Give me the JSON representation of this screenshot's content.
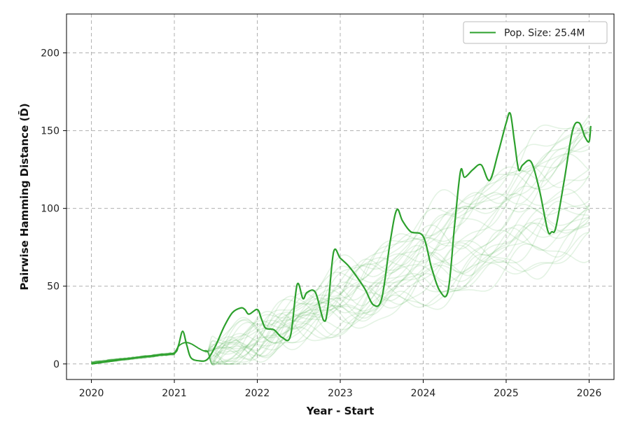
{
  "chart_data": {
    "type": "line",
    "title": "",
    "xlabel": "Year - Start",
    "ylabel": "Pairwise Hamming Distance (D̄)",
    "xlim": [
      2019.7,
      2026.3
    ],
    "ylim": [
      -10,
      225
    ],
    "x_ticks": [
      2020,
      2021,
      2022,
      2023,
      2024,
      2025,
      2026
    ],
    "x_tick_labels": [
      "2020",
      "2021",
      "2022",
      "2023",
      "2024",
      "2025",
      "2026"
    ],
    "y_ticks": [
      0,
      50,
      100,
      150,
      200
    ],
    "y_tick_labels": [
      "0",
      "50",
      "100",
      "150",
      "200"
    ],
    "grid": true,
    "legend": {
      "position": "top-right",
      "entries": [
        "Pop. Size: 25.4M"
      ]
    },
    "colors": {
      "main": "#2ca02c",
      "background_runs": "#2ca02c"
    },
    "series": [
      {
        "name": "Pop. Size: 25.4M",
        "x": [
          2020.0,
          2020.2,
          2020.4,
          2020.6,
          2020.8,
          2021.0,
          2021.05,
          2021.1,
          2021.15,
          2021.2,
          2021.3,
          2021.4,
          2021.5,
          2021.6,
          2021.7,
          2021.8,
          2021.85,
          2021.9,
          2022.0,
          2022.05,
          2022.1,
          2022.2,
          2022.3,
          2022.4,
          2022.48,
          2022.55,
          2022.6,
          2022.7,
          2022.8,
          2022.85,
          2022.92,
          2023.0,
          2023.1,
          2023.2,
          2023.3,
          2023.4,
          2023.5,
          2023.6,
          2023.68,
          2023.75,
          2023.85,
          2024.0,
          2024.1,
          2024.2,
          2024.3,
          2024.38,
          2024.45,
          2024.5,
          2024.6,
          2024.7,
          2024.8,
          2024.9,
          2025.0,
          2025.05,
          2025.1,
          2025.15,
          2025.2,
          2025.3,
          2025.4,
          2025.5,
          2025.55,
          2025.6,
          2025.7,
          2025.8,
          2025.88,
          2025.95,
          2026.0,
          2026.02
        ],
        "y": [
          0,
          1.5,
          3,
          4.5,
          5.5,
          7,
          12,
          21,
          12,
          4,
          2,
          3,
          12,
          24,
          33,
          36,
          35,
          32,
          35,
          29,
          23,
          22,
          17,
          18,
          51,
          42,
          46,
          46,
          28,
          36,
          72,
          68,
          63,
          56,
          48,
          38,
          42,
          78,
          99,
          92,
          85,
          82,
          62,
          47,
          47,
          90,
          124,
          120,
          125,
          128,
          118,
          135,
          155,
          161,
          143,
          125,
          128,
          130,
          112,
          86,
          85,
          88,
          118,
          150,
          155,
          146,
          143,
          153
        ]
      }
    ]
  }
}
